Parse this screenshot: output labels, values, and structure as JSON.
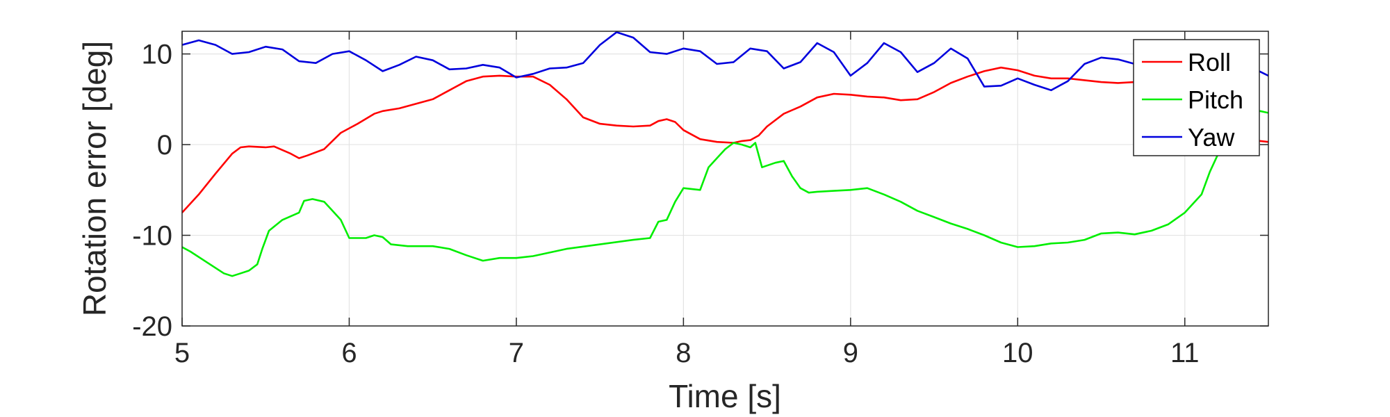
{
  "chart_data": {
    "type": "line",
    "title": "",
    "xlabel": "Time [s]",
    "ylabel": "Rotation error [deg]",
    "xlim": [
      5,
      11.5
    ],
    "ylim": [
      -20,
      12.5
    ],
    "xticks": [
      5,
      6,
      7,
      8,
      9,
      10,
      11
    ],
    "xtick_labels": [
      "5",
      "6",
      "7",
      "8",
      "9",
      "10",
      "11"
    ],
    "yticks": [
      -20,
      -10,
      0,
      10
    ],
    "ytick_labels": [
      "-20",
      "-10",
      "0",
      "10"
    ],
    "grid": true,
    "legend_position": "top-right",
    "series": [
      {
        "name": "Roll",
        "color": "#ff0000",
        "points": [
          [
            5.0,
            -7.5
          ],
          [
            5.1,
            -5.5
          ],
          [
            5.2,
            -3.2
          ],
          [
            5.3,
            -1.0
          ],
          [
            5.35,
            -0.3
          ],
          [
            5.4,
            -0.2
          ],
          [
            5.5,
            -0.3
          ],
          [
            5.55,
            -0.2
          ],
          [
            5.65,
            -1.0
          ],
          [
            5.7,
            -1.5
          ],
          [
            5.75,
            -1.2
          ],
          [
            5.85,
            -0.5
          ],
          [
            5.95,
            1.3
          ],
          [
            6.05,
            2.3
          ],
          [
            6.15,
            3.4
          ],
          [
            6.2,
            3.7
          ],
          [
            6.3,
            4.0
          ],
          [
            6.5,
            5.0
          ],
          [
            6.6,
            6.0
          ],
          [
            6.7,
            7.0
          ],
          [
            6.8,
            7.5
          ],
          [
            6.9,
            7.6
          ],
          [
            7.0,
            7.5
          ],
          [
            7.1,
            7.5
          ],
          [
            7.2,
            6.6
          ],
          [
            7.3,
            5.0
          ],
          [
            7.4,
            3.0
          ],
          [
            7.5,
            2.3
          ],
          [
            7.6,
            2.1
          ],
          [
            7.7,
            2.0
          ],
          [
            7.8,
            2.1
          ],
          [
            7.85,
            2.6
          ],
          [
            7.9,
            2.8
          ],
          [
            7.95,
            2.5
          ],
          [
            8.0,
            1.6
          ],
          [
            8.1,
            0.6
          ],
          [
            8.2,
            0.3
          ],
          [
            8.3,
            0.2
          ],
          [
            8.35,
            0.4
          ],
          [
            8.4,
            0.5
          ],
          [
            8.45,
            1.0
          ],
          [
            8.5,
            2.0
          ],
          [
            8.6,
            3.4
          ],
          [
            8.7,
            4.2
          ],
          [
            8.8,
            5.2
          ],
          [
            8.9,
            5.6
          ],
          [
            9.0,
            5.5
          ],
          [
            9.1,
            5.3
          ],
          [
            9.2,
            5.2
          ],
          [
            9.3,
            4.9
          ],
          [
            9.4,
            5.0
          ],
          [
            9.5,
            5.8
          ],
          [
            9.6,
            6.8
          ],
          [
            9.7,
            7.5
          ],
          [
            9.8,
            8.1
          ],
          [
            9.9,
            8.5
          ],
          [
            10.0,
            8.2
          ],
          [
            10.1,
            7.6
          ],
          [
            10.2,
            7.3
          ],
          [
            10.3,
            7.3
          ],
          [
            10.4,
            7.1
          ],
          [
            10.5,
            6.9
          ],
          [
            10.6,
            6.8
          ],
          [
            10.7,
            6.9
          ],
          [
            10.8,
            6.8
          ],
          [
            10.9,
            6.5
          ],
          [
            11.0,
            6.0
          ],
          [
            11.1,
            4.5
          ],
          [
            11.2,
            2.5
          ],
          [
            11.3,
            1.0
          ],
          [
            11.4,
            0.5
          ],
          [
            11.5,
            0.3
          ]
        ]
      },
      {
        "name": "Pitch",
        "color": "#00ee00",
        "points": [
          [
            5.0,
            -11.3
          ],
          [
            5.05,
            -11.8
          ],
          [
            5.15,
            -13.0
          ],
          [
            5.25,
            -14.2
          ],
          [
            5.3,
            -14.5
          ],
          [
            5.35,
            -14.2
          ],
          [
            5.4,
            -13.9
          ],
          [
            5.45,
            -13.2
          ],
          [
            5.48,
            -11.5
          ],
          [
            5.52,
            -9.5
          ],
          [
            5.6,
            -8.3
          ],
          [
            5.7,
            -7.5
          ],
          [
            5.73,
            -6.2
          ],
          [
            5.78,
            -6.0
          ],
          [
            5.85,
            -6.3
          ],
          [
            5.9,
            -7.3
          ],
          [
            5.95,
            -8.3
          ],
          [
            6.0,
            -10.3
          ],
          [
            6.1,
            -10.3
          ],
          [
            6.15,
            -10.0
          ],
          [
            6.2,
            -10.2
          ],
          [
            6.25,
            -11.0
          ],
          [
            6.35,
            -11.2
          ],
          [
            6.5,
            -11.2
          ],
          [
            6.6,
            -11.5
          ],
          [
            6.7,
            -12.2
          ],
          [
            6.8,
            -12.8
          ],
          [
            6.9,
            -12.5
          ],
          [
            7.0,
            -12.5
          ],
          [
            7.1,
            -12.3
          ],
          [
            7.3,
            -11.5
          ],
          [
            7.5,
            -11.0
          ],
          [
            7.7,
            -10.5
          ],
          [
            7.8,
            -10.3
          ],
          [
            7.85,
            -8.5
          ],
          [
            7.9,
            -8.3
          ],
          [
            7.95,
            -6.3
          ],
          [
            8.0,
            -4.8
          ],
          [
            8.1,
            -5.0
          ],
          [
            8.15,
            -2.5
          ],
          [
            8.2,
            -1.5
          ],
          [
            8.25,
            -0.5
          ],
          [
            8.3,
            0.2
          ],
          [
            8.35,
            0.0
          ],
          [
            8.4,
            -0.3
          ],
          [
            8.43,
            0.2
          ],
          [
            8.47,
            -2.5
          ],
          [
            8.55,
            -2.0
          ],
          [
            8.6,
            -1.8
          ],
          [
            8.65,
            -3.5
          ],
          [
            8.7,
            -4.8
          ],
          [
            8.75,
            -5.3
          ],
          [
            8.8,
            -5.2
          ],
          [
            8.9,
            -5.1
          ],
          [
            9.0,
            -5.0
          ],
          [
            9.1,
            -4.8
          ],
          [
            9.2,
            -5.5
          ],
          [
            9.3,
            -6.3
          ],
          [
            9.4,
            -7.3
          ],
          [
            9.5,
            -8.0
          ],
          [
            9.6,
            -8.7
          ],
          [
            9.7,
            -9.3
          ],
          [
            9.8,
            -10.0
          ],
          [
            9.9,
            -10.8
          ],
          [
            10.0,
            -11.3
          ],
          [
            10.1,
            -11.2
          ],
          [
            10.2,
            -10.9
          ],
          [
            10.3,
            -10.8
          ],
          [
            10.4,
            -10.5
          ],
          [
            10.5,
            -9.8
          ],
          [
            10.6,
            -9.7
          ],
          [
            10.7,
            -9.9
          ],
          [
            10.8,
            -9.5
          ],
          [
            10.9,
            -8.8
          ],
          [
            11.0,
            -7.5
          ],
          [
            11.1,
            -5.5
          ],
          [
            11.15,
            -3.0
          ],
          [
            11.2,
            -1.0
          ],
          [
            11.3,
            1.0
          ],
          [
            11.4,
            3.5
          ],
          [
            11.45,
            3.7
          ],
          [
            11.5,
            3.5
          ]
        ]
      },
      {
        "name": "Yaw",
        "color": "#0000dd",
        "points": [
          [
            5.0,
            11.0
          ],
          [
            5.1,
            11.5
          ],
          [
            5.2,
            11.0
          ],
          [
            5.3,
            10.0
          ],
          [
            5.4,
            10.2
          ],
          [
            5.5,
            10.8
          ],
          [
            5.6,
            10.5
          ],
          [
            5.7,
            9.2
          ],
          [
            5.8,
            9.0
          ],
          [
            5.9,
            10.0
          ],
          [
            6.0,
            10.3
          ],
          [
            6.1,
            9.3
          ],
          [
            6.2,
            8.1
          ],
          [
            6.3,
            8.8
          ],
          [
            6.4,
            9.7
          ],
          [
            6.5,
            9.3
          ],
          [
            6.6,
            8.3
          ],
          [
            6.7,
            8.4
          ],
          [
            6.8,
            8.8
          ],
          [
            6.9,
            8.5
          ],
          [
            7.0,
            7.4
          ],
          [
            7.1,
            7.8
          ],
          [
            7.2,
            8.4
          ],
          [
            7.3,
            8.5
          ],
          [
            7.4,
            9.0
          ],
          [
            7.5,
            11.0
          ],
          [
            7.6,
            12.4
          ],
          [
            7.7,
            11.8
          ],
          [
            7.8,
            10.2
          ],
          [
            7.9,
            10.0
          ],
          [
            8.0,
            10.6
          ],
          [
            8.1,
            10.3
          ],
          [
            8.2,
            8.9
          ],
          [
            8.3,
            9.1
          ],
          [
            8.4,
            10.6
          ],
          [
            8.5,
            10.3
          ],
          [
            8.6,
            8.4
          ],
          [
            8.7,
            9.1
          ],
          [
            8.8,
            11.2
          ],
          [
            8.9,
            10.2
          ],
          [
            9.0,
            7.6
          ],
          [
            9.1,
            9.0
          ],
          [
            9.2,
            11.2
          ],
          [
            9.3,
            10.2
          ],
          [
            9.4,
            8.0
          ],
          [
            9.5,
            9.0
          ],
          [
            9.6,
            10.6
          ],
          [
            9.7,
            9.5
          ],
          [
            9.8,
            6.4
          ],
          [
            9.9,
            6.5
          ],
          [
            10.0,
            7.3
          ],
          [
            10.1,
            6.6
          ],
          [
            10.2,
            6.0
          ],
          [
            10.3,
            7.0
          ],
          [
            10.4,
            8.9
          ],
          [
            10.5,
            9.6
          ],
          [
            10.6,
            9.4
          ],
          [
            10.7,
            8.9
          ],
          [
            10.8,
            8.7
          ],
          [
            10.9,
            8.6
          ],
          [
            11.0,
            8.6
          ],
          [
            11.1,
            8.8
          ],
          [
            11.2,
            9.3
          ],
          [
            11.3,
            9.2
          ],
          [
            11.4,
            8.5
          ],
          [
            11.5,
            7.6
          ]
        ]
      }
    ]
  }
}
